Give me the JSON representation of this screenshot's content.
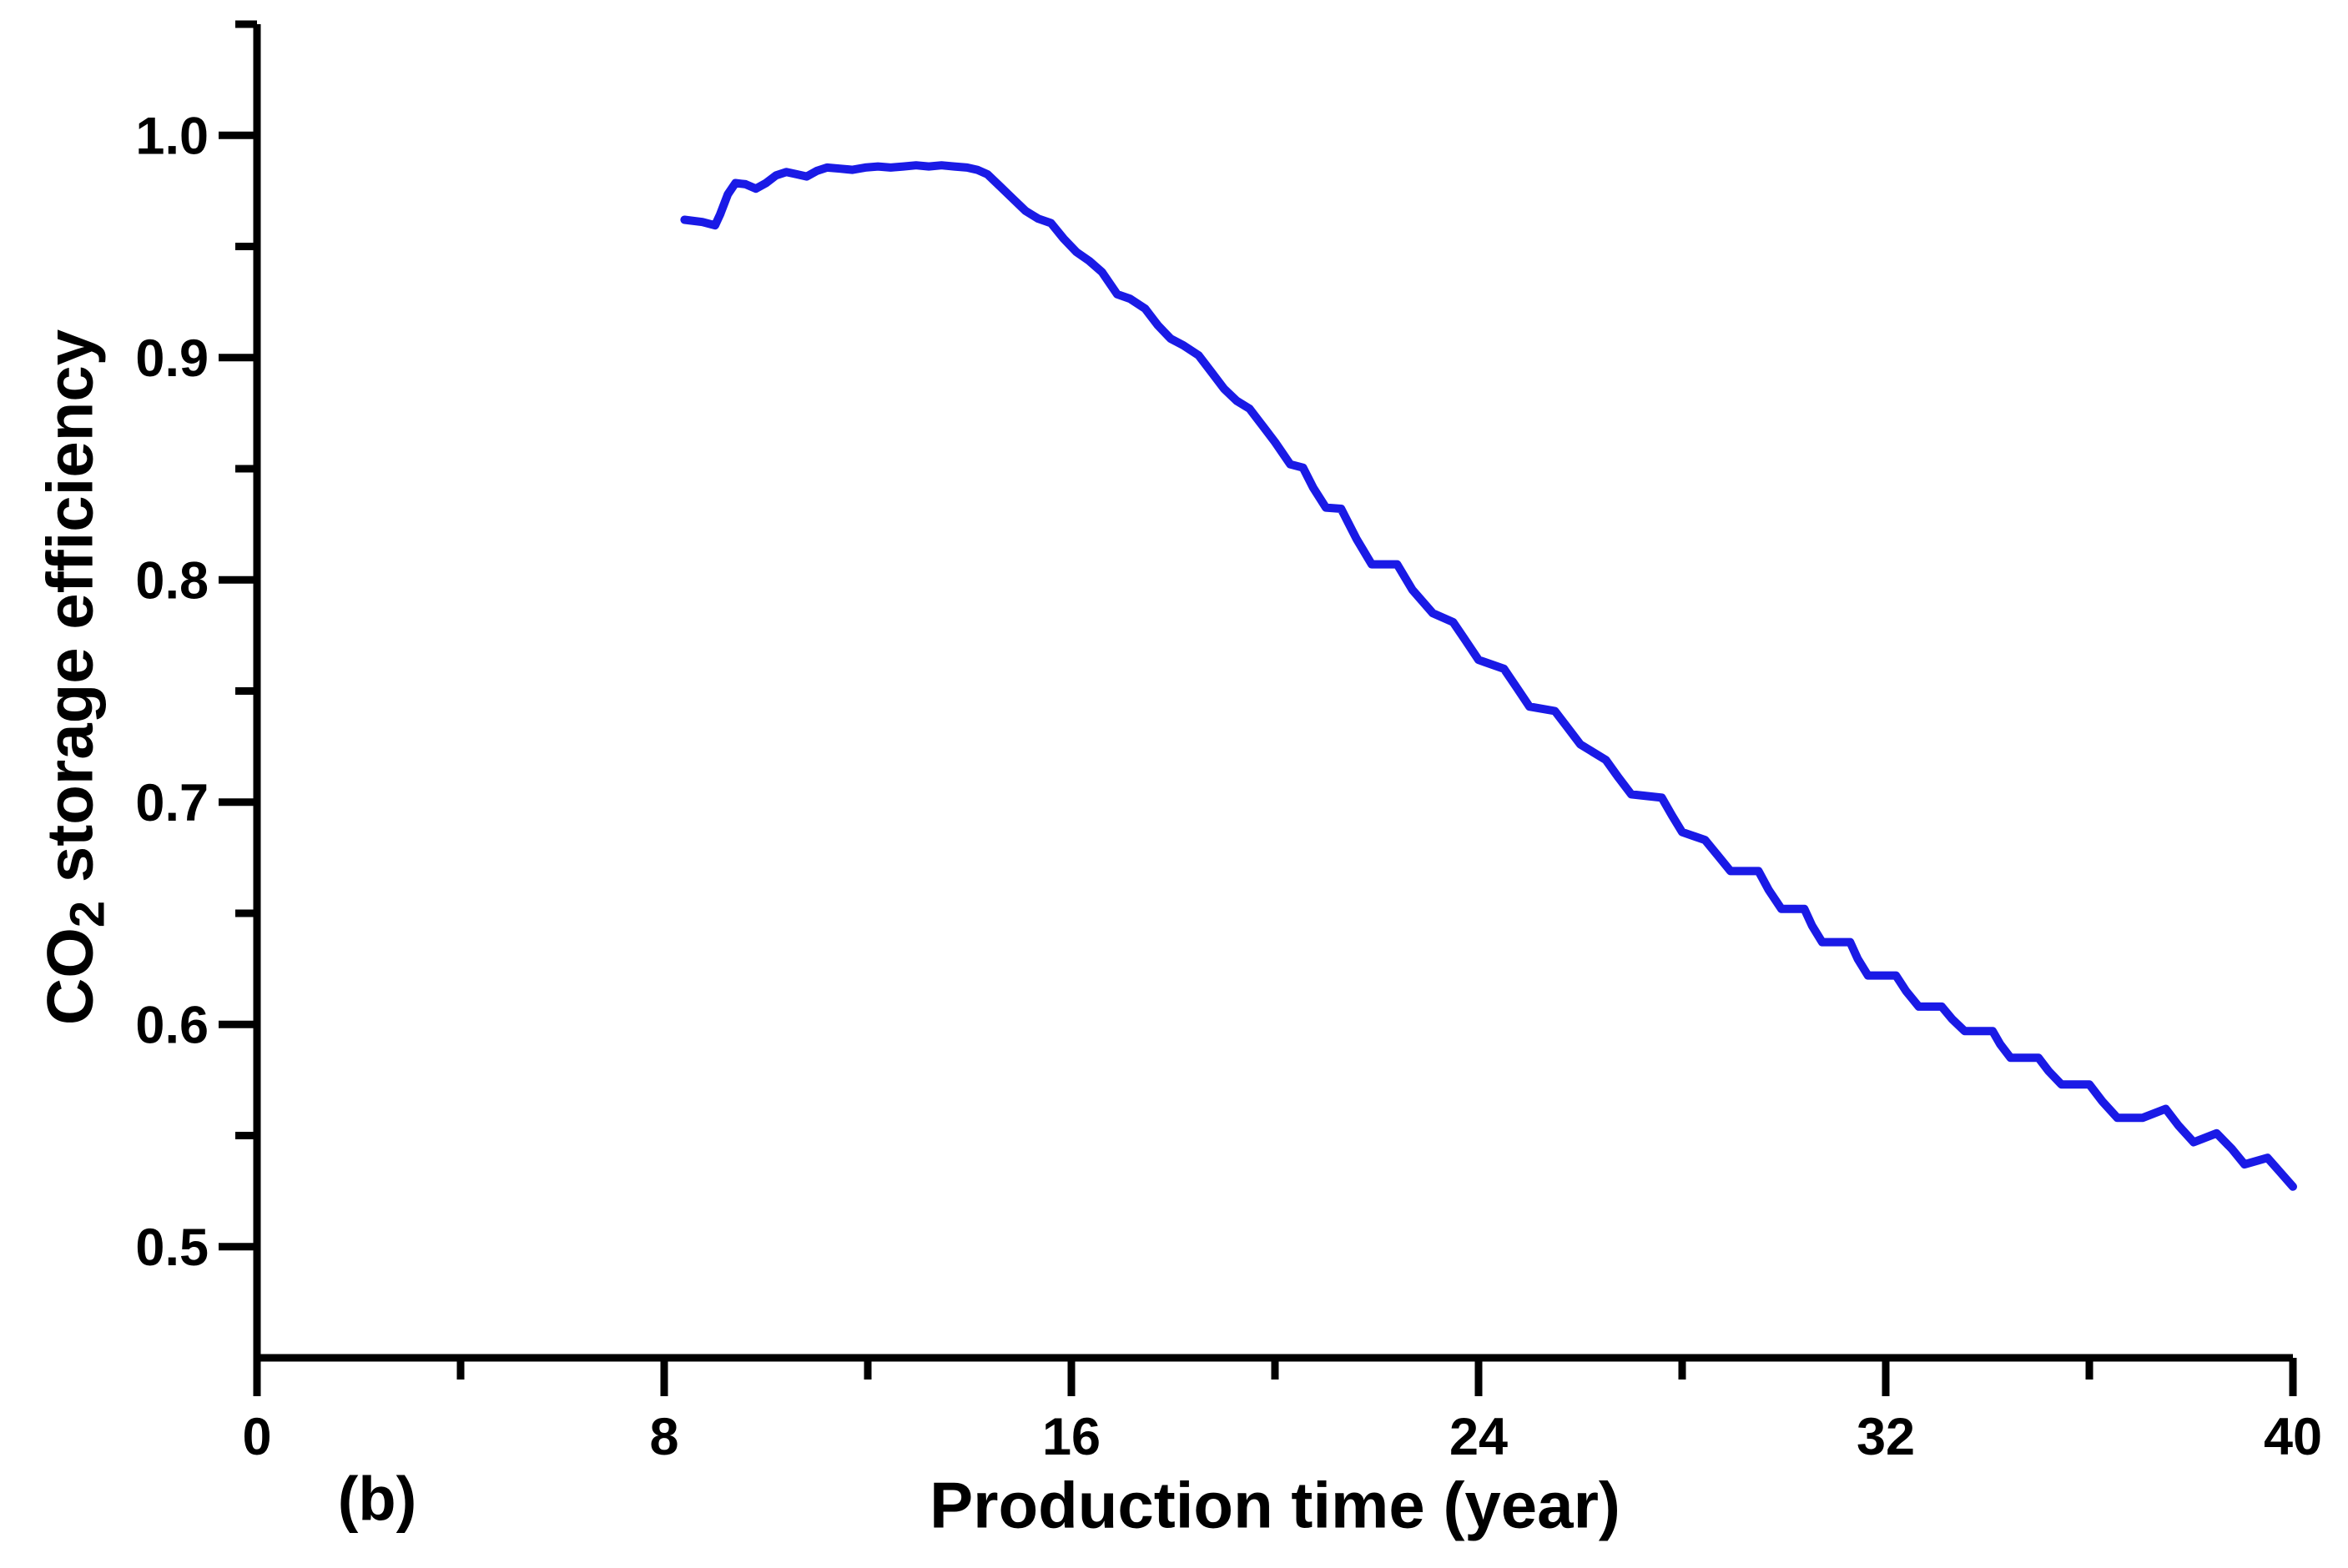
{
  "figure": {
    "panel_label": "(b)",
    "x_axis": {
      "label": "Production time (year)",
      "tick_labels": [
        "0",
        "8",
        "16",
        "24",
        "32",
        "40"
      ]
    },
    "y_axis": {
      "label_main": "CO",
      "label_sub": "2",
      "label_rest": " storage efficiency",
      "tick_labels": [
        "0.5",
        "0.6",
        "0.7",
        "0.8",
        "0.9",
        "1.0"
      ]
    }
  },
  "chart_data": {
    "type": "line",
    "title": "",
    "xlabel": "Production time (year)",
    "ylabel": "CO2 storage efficiency",
    "x_ticks": [
      0,
      8,
      16,
      24,
      32,
      40
    ],
    "x_minor_ticks": [
      4,
      12,
      20,
      28,
      36
    ],
    "y_ticks": [
      0.5,
      0.6,
      0.7,
      0.8,
      0.9,
      1.0
    ],
    "y_minor_ticks": [
      0.55,
      0.65,
      0.75,
      0.85,
      0.95,
      1.05
    ],
    "xlim": [
      0,
      40
    ],
    "ylim": [
      0.45,
      1.05
    ],
    "grid": false,
    "legend_position": "none",
    "line_color": "#1a1ae6",
    "axis_color": "#000000",
    "series": [
      {
        "name": "CO2 storage efficiency",
        "points": [
          [
            8.4,
            0.962
          ],
          [
            8.75,
            0.961
          ],
          [
            9.0,
            0.9595
          ],
          [
            9.1,
            0.9645
          ],
          [
            9.25,
            0.9735
          ],
          [
            9.4,
            0.9785
          ],
          [
            9.6,
            0.978
          ],
          [
            9.8,
            0.976
          ],
          [
            10.0,
            0.9785
          ],
          [
            10.2,
            0.982
          ],
          [
            10.4,
            0.9835
          ],
          [
            10.6,
            0.9825
          ],
          [
            10.8,
            0.9815
          ],
          [
            11.0,
            0.984
          ],
          [
            11.2,
            0.9855
          ],
          [
            11.45,
            0.985
          ],
          [
            11.7,
            0.9845
          ],
          [
            11.95,
            0.9855
          ],
          [
            12.2,
            0.986
          ],
          [
            12.45,
            0.9855
          ],
          [
            12.7,
            0.986
          ],
          [
            12.95,
            0.9865
          ],
          [
            13.2,
            0.986
          ],
          [
            13.45,
            0.9865
          ],
          [
            13.7,
            0.986
          ],
          [
            13.95,
            0.9855
          ],
          [
            14.15,
            0.9845
          ],
          [
            14.35,
            0.9825
          ],
          [
            14.6,
            0.977
          ],
          [
            14.85,
            0.9715
          ],
          [
            15.1,
            0.966
          ],
          [
            15.35,
            0.9625
          ],
          [
            15.6,
            0.9605
          ],
          [
            15.85,
            0.9535
          ],
          [
            16.1,
            0.9475
          ],
          [
            16.35,
            0.9435
          ],
          [
            16.6,
            0.9385
          ],
          [
            16.9,
            0.9285
          ],
          [
            17.15,
            0.9265
          ],
          [
            17.45,
            0.922
          ],
          [
            17.7,
            0.9145
          ],
          [
            17.95,
            0.9085
          ],
          [
            18.2,
            0.9055
          ],
          [
            18.5,
            0.901
          ],
          [
            18.75,
            0.8935
          ],
          [
            19.0,
            0.886
          ],
          [
            19.25,
            0.8805
          ],
          [
            19.5,
            0.877
          ],
          [
            19.75,
            0.8695
          ],
          [
            20.0,
            0.862
          ],
          [
            20.3,
            0.852
          ],
          [
            20.55,
            0.8505
          ],
          [
            20.75,
            0.8415
          ],
          [
            21.0,
            0.8325
          ],
          [
            21.3,
            0.832
          ],
          [
            21.6,
            0.8185
          ],
          [
            21.9,
            0.807
          ],
          [
            22.4,
            0.807
          ],
          [
            22.7,
            0.7955
          ],
          [
            23.1,
            0.785
          ],
          [
            23.5,
            0.781
          ],
          [
            23.75,
            0.7725
          ],
          [
            24.0,
            0.764
          ],
          [
            24.5,
            0.76
          ],
          [
            24.75,
            0.7515
          ],
          [
            25.0,
            0.743
          ],
          [
            25.5,
            0.741
          ],
          [
            25.75,
            0.7335
          ],
          [
            26.0,
            0.726
          ],
          [
            26.5,
            0.719
          ],
          [
            26.75,
            0.711
          ],
          [
            27.0,
            0.7035
          ],
          [
            27.6,
            0.702
          ],
          [
            27.8,
            0.694
          ],
          [
            28.0,
            0.6865
          ],
          [
            28.45,
            0.683
          ],
          [
            28.7,
            0.676
          ],
          [
            28.95,
            0.669
          ],
          [
            29.5,
            0.669
          ],
          [
            29.7,
            0.6605
          ],
          [
            29.95,
            0.652
          ],
          [
            30.4,
            0.652
          ],
          [
            30.55,
            0.6445
          ],
          [
            30.75,
            0.637
          ],
          [
            31.3,
            0.637
          ],
          [
            31.45,
            0.6295
          ],
          [
            31.65,
            0.622
          ],
          [
            32.2,
            0.622
          ],
          [
            32.4,
            0.615
          ],
          [
            32.65,
            0.608
          ],
          [
            33.1,
            0.608
          ],
          [
            33.3,
            0.6025
          ],
          [
            33.55,
            0.597
          ],
          [
            34.1,
            0.597
          ],
          [
            34.25,
            0.591
          ],
          [
            34.45,
            0.585
          ],
          [
            35.0,
            0.585
          ],
          [
            35.2,
            0.579
          ],
          [
            35.45,
            0.573
          ],
          [
            36.0,
            0.573
          ],
          [
            36.25,
            0.5655
          ],
          [
            36.55,
            0.558
          ],
          [
            37.05,
            0.558
          ],
          [
            37.5,
            0.562
          ],
          [
            37.75,
            0.5545
          ],
          [
            38.05,
            0.547
          ],
          [
            38.5,
            0.551
          ],
          [
            38.8,
            0.544
          ],
          [
            39.05,
            0.537
          ],
          [
            39.5,
            0.54
          ],
          [
            39.75,
            0.5335
          ],
          [
            40.0,
            0.527
          ]
        ]
      }
    ]
  }
}
